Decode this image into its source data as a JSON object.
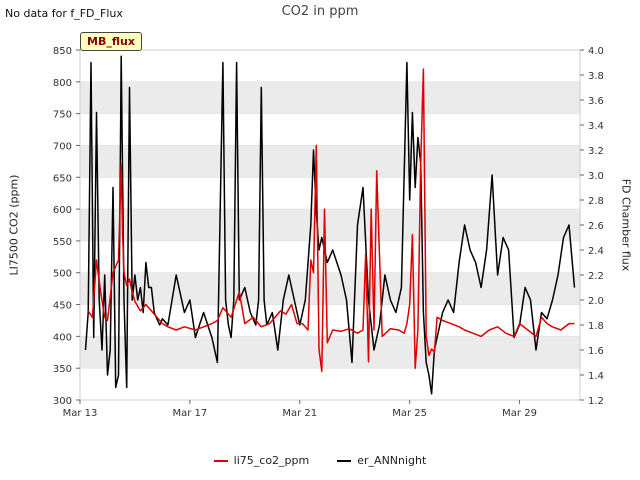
{
  "header": {
    "no_data_text": "No data for f_FD_Flux",
    "title": "CO2 in ppm"
  },
  "badge": {
    "label": "MB_flux"
  },
  "chart_data": {
    "type": "line",
    "title": "CO2 in ppm",
    "xlabel": "",
    "ylabel": "LI7500 CO2 (ppm)",
    "y2label": "FD Chamber flux",
    "xlim": [
      0,
      18.2
    ],
    "ylim": [
      300,
      850
    ],
    "y2lim": [
      1.2,
      4.0
    ],
    "x_ticks": [
      0,
      4,
      8,
      12,
      16
    ],
    "x_tick_labels": [
      "Mar 13",
      "Mar 17",
      "Mar 21",
      "Mar 25",
      "Mar 29"
    ],
    "y_ticks": [
      300,
      350,
      400,
      450,
      500,
      550,
      600,
      650,
      700,
      750,
      800,
      850
    ],
    "y2_ticks": [
      1.2,
      1.4,
      1.6,
      1.8,
      2.0,
      2.2,
      2.4,
      2.6,
      2.8,
      3.0,
      3.2,
      3.4,
      3.6,
      3.8,
      4.0
    ],
    "colors": {
      "li75": "#dd0000",
      "er": "#000000",
      "band": "#ebebeb"
    },
    "series": [
      {
        "name": "li75_co2_ppm",
        "axis": "left",
        "x": [
          0.3,
          0.45,
          0.6,
          0.75,
          0.9,
          1.0,
          1.2,
          1.4,
          1.5,
          1.55,
          1.6,
          1.7,
          1.8,
          1.9,
          2.0,
          2.2,
          2.4,
          2.6,
          2.8,
          3.0,
          3.2,
          3.5,
          3.8,
          4.2,
          4.5,
          4.8,
          5.0,
          5.2,
          5.5,
          5.8,
          6.0,
          6.3,
          6.6,
          6.9,
          7.1,
          7.3,
          7.5,
          7.7,
          7.9,
          8.1,
          8.3,
          8.4,
          8.5,
          8.6,
          8.7,
          8.8,
          8.9,
          9.0,
          9.2,
          9.5,
          9.8,
          10.1,
          10.3,
          10.4,
          10.5,
          10.6,
          10.7,
          10.8,
          11.0,
          11.3,
          11.6,
          11.8,
          11.9,
          12.0,
          12.1,
          12.2,
          12.3,
          12.4,
          12.5,
          12.6,
          12.7,
          12.8,
          12.9,
          13.0,
          13.2,
          13.5,
          13.8,
          14.0,
          14.3,
          14.6,
          14.9,
          15.2,
          15.5,
          15.8,
          16.0,
          16.3,
          16.6,
          16.8,
          17.0,
          17.2,
          17.5,
          17.8,
          18.0
        ],
        "values": [
          440,
          430,
          520,
          470,
          430,
          425,
          500,
          520,
          670,
          560,
          500,
          480,
          490,
          470,
          455,
          440,
          450,
          440,
          430,
          420,
          415,
          410,
          415,
          410,
          415,
          420,
          425,
          445,
          430,
          470,
          420,
          430,
          415,
          420,
          430,
          440,
          435,
          450,
          420,
          420,
          410,
          520,
          500,
          700,
          380,
          345,
          600,
          390,
          410,
          408,
          412,
          405,
          410,
          530,
          360,
          600,
          410,
          660,
          400,
          412,
          410,
          405,
          420,
          450,
          560,
          350,
          410,
          670,
          820,
          400,
          370,
          380,
          375,
          430,
          425,
          420,
          415,
          410,
          405,
          400,
          410,
          415,
          405,
          400,
          420,
          410,
          400,
          430,
          420,
          415,
          410,
          420,
          420
        ]
      },
      {
        "name": "er_ANNnight",
        "axis": "right",
        "x": [
          0.2,
          0.3,
          0.4,
          0.5,
          0.6,
          0.7,
          0.8,
          0.9,
          1.0,
          1.1,
          1.2,
          1.3,
          1.4,
          1.5,
          1.6,
          1.7,
          1.8,
          1.9,
          2.0,
          2.1,
          2.2,
          2.3,
          2.4,
          2.5,
          2.6,
          2.7,
          2.8,
          2.9,
          3.0,
          3.2,
          3.5,
          3.8,
          4.0,
          4.2,
          4.5,
          4.8,
          5.0,
          5.2,
          5.3,
          5.4,
          5.5,
          5.6,
          5.7,
          5.8,
          6.0,
          6.2,
          6.4,
          6.5,
          6.6,
          6.7,
          6.8,
          7.0,
          7.2,
          7.4,
          7.6,
          7.8,
          8.0,
          8.2,
          8.4,
          8.5,
          8.6,
          8.7,
          8.8,
          9.0,
          9.2,
          9.5,
          9.7,
          9.9,
          10.1,
          10.3,
          10.5,
          10.7,
          10.9,
          11.1,
          11.3,
          11.5,
          11.7,
          11.9,
          12.0,
          12.1,
          12.2,
          12.3,
          12.4,
          12.5,
          12.6,
          12.7,
          12.8,
          12.9,
          13.0,
          13.2,
          13.4,
          13.6,
          13.8,
          14.0,
          14.2,
          14.4,
          14.6,
          14.8,
          15.0,
          15.2,
          15.4,
          15.6,
          15.8,
          16.0,
          16.2,
          16.4,
          16.6,
          16.8,
          17.0,
          17.2,
          17.4,
          17.6,
          17.8,
          18.0
        ],
        "values": [
          1.6,
          1.9,
          3.9,
          1.7,
          3.5,
          2.0,
          1.6,
          2.2,
          1.4,
          1.6,
          2.9,
          1.3,
          1.4,
          3.95,
          2.0,
          1.3,
          3.7,
          2.0,
          2.2,
          2.0,
          2.1,
          1.9,
          2.3,
          2.1,
          2.1,
          1.9,
          1.85,
          1.8,
          1.85,
          1.8,
          2.2,
          1.9,
          2.0,
          1.7,
          1.9,
          1.7,
          1.5,
          3.9,
          2.0,
          1.8,
          1.7,
          2.0,
          3.9,
          2.0,
          2.1,
          1.9,
          1.8,
          2.0,
          3.7,
          2.0,
          1.8,
          1.9,
          1.6,
          2.0,
          2.2,
          2.0,
          1.8,
          2.0,
          2.6,
          3.2,
          2.7,
          2.4,
          2.5,
          2.3,
          2.4,
          2.2,
          2.0,
          1.5,
          2.6,
          2.9,
          2.0,
          1.6,
          1.8,
          2.2,
          2.0,
          1.9,
          2.1,
          3.9,
          2.8,
          3.5,
          2.9,
          3.3,
          3.1,
          1.9,
          1.5,
          1.4,
          1.25,
          1.6,
          1.7,
          1.9,
          2.0,
          1.9,
          2.3,
          2.6,
          2.4,
          2.3,
          2.1,
          2.4,
          3.0,
          2.2,
          2.5,
          2.4,
          1.7,
          1.8,
          2.1,
          2.0,
          1.6,
          1.9,
          1.85,
          2.0,
          2.2,
          2.5,
          2.6,
          2.1
        ]
      }
    ]
  },
  "legend": {
    "items": [
      {
        "label": "li75_co2_ppm",
        "color": "#dd0000"
      },
      {
        "label": "er_ANNnight",
        "color": "#000000"
      }
    ]
  }
}
